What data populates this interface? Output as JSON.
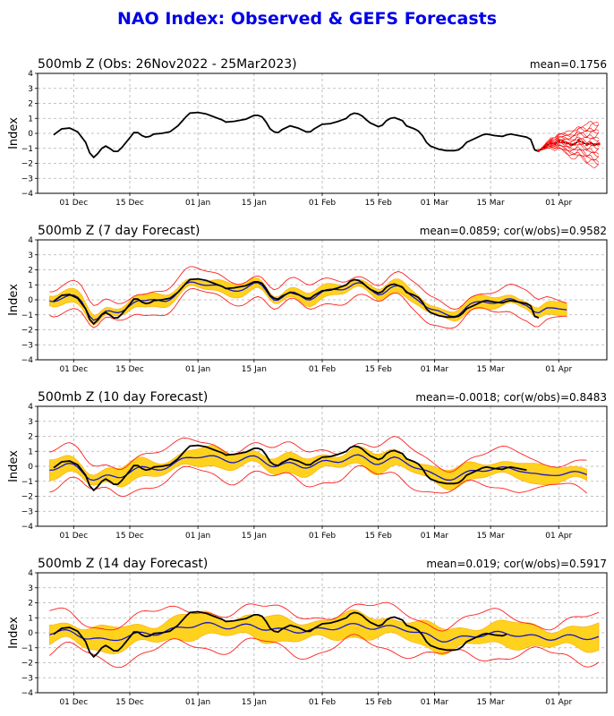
{
  "title": "NAO Index: Observed & GEFS Forecasts",
  "colors": {
    "title": "#0000e6",
    "observed": "#000000",
    "members": "#ff0000",
    "mean": "#1515c8",
    "spread": "#ffd21e",
    "spread_outline": "#ffaa00",
    "envelope": "#ff2020"
  },
  "chart_data": [
    {
      "type": "line",
      "title": "500mb Z (Obs: 26Nov2022 - 25Mar2023)",
      "stat": "mean=0.1756",
      "ylabel": "Index",
      "xlabel": "",
      "ylim": [
        -4,
        4
      ],
      "yticks": [
        "4",
        "3",
        "2",
        "1",
        "0",
        "−1",
        "−2",
        "−3",
        "−4"
      ],
      "xticks": [
        "01 Dec",
        "15 Dec",
        "01 Jan",
        "15 Jan",
        "01 Feb",
        "15 Feb",
        "01 Mar",
        "15 Mar",
        "01 Apr"
      ],
      "grid": true,
      "observed": [
        [
          -5,
          -0.1
        ],
        [
          -3,
          0.3
        ],
        [
          -1,
          0.35
        ],
        [
          1,
          0.1
        ],
        [
          3,
          -0.6
        ],
        [
          4,
          -1.3
        ],
        [
          5,
          -1.6
        ],
        [
          6,
          -1.35
        ],
        [
          7,
          -1.0
        ],
        [
          8,
          -0.85
        ],
        [
          9,
          -1.0
        ],
        [
          10,
          -1.2
        ],
        [
          11,
          -1.2
        ],
        [
          12,
          -0.95
        ],
        [
          14,
          -0.3
        ],
        [
          15,
          0.05
        ],
        [
          16,
          0.05
        ],
        [
          17,
          -0.15
        ],
        [
          18,
          -0.25
        ],
        [
          19,
          -0.2
        ],
        [
          20,
          -0.05
        ],
        [
          22,
          0
        ],
        [
          24,
          0.1
        ],
        [
          26,
          0.5
        ],
        [
          28,
          1.1
        ],
        [
          29,
          1.35
        ],
        [
          31,
          1.4
        ],
        [
          33,
          1.3
        ],
        [
          35,
          1.1
        ],
        [
          37,
          0.9
        ],
        [
          38,
          0.75
        ],
        [
          40,
          0.8
        ],
        [
          43,
          0.95
        ],
        [
          45,
          1.2
        ],
        [
          46,
          1.2
        ],
        [
          47,
          1.1
        ],
        [
          48,
          0.75
        ],
        [
          49,
          0.3
        ],
        [
          50,
          0.1
        ],
        [
          51,
          0.05
        ],
        [
          52,
          0.25
        ],
        [
          54,
          0.5
        ],
        [
          56,
          0.35
        ],
        [
          58,
          0.1
        ],
        [
          59,
          0.1
        ],
        [
          60,
          0.3
        ],
        [
          62,
          0.6
        ],
        [
          64,
          0.65
        ],
        [
          66,
          0.8
        ],
        [
          68,
          1.0
        ],
        [
          69,
          1.25
        ],
        [
          70,
          1.35
        ],
        [
          71,
          1.3
        ],
        [
          72,
          1.15
        ],
        [
          73,
          0.9
        ],
        [
          74,
          0.7
        ],
        [
          76,
          0.45
        ],
        [
          77,
          0.55
        ],
        [
          78,
          0.85
        ],
        [
          79,
          1.0
        ],
        [
          80,
          1.05
        ],
        [
          82,
          0.85
        ],
        [
          83,
          0.5
        ],
        [
          85,
          0.3
        ],
        [
          86,
          0.15
        ],
        [
          87,
          -0.15
        ],
        [
          88,
          -0.6
        ],
        [
          89,
          -0.85
        ],
        [
          91,
          -1.05
        ],
        [
          93,
          -1.15
        ],
        [
          95,
          -1.15
        ],
        [
          96,
          -1.1
        ],
        [
          97,
          -0.9
        ],
        [
          98,
          -0.6
        ],
        [
          100,
          -0.35
        ],
        [
          102,
          -0.1
        ],
        [
          103,
          -0.05
        ],
        [
          105,
          -0.15
        ],
        [
          107,
          -0.2
        ],
        [
          108,
          -0.1
        ],
        [
          109,
          -0.05
        ],
        [
          111,
          -0.15
        ],
        [
          113,
          -0.25
        ],
        [
          114,
          -0.4
        ],
        [
          115,
          -1.1
        ],
        [
          116,
          -1.2
        ]
      ],
      "mean": [
        [
          116,
          -1.15
        ],
        [
          117,
          -1.0
        ],
        [
          118,
          -0.8
        ],
        [
          119,
          -0.65
        ],
        [
          120,
          -0.7
        ],
        [
          121,
          -0.5
        ],
        [
          122,
          -0.55
        ],
        [
          123,
          -0.65
        ],
        [
          124,
          -0.75
        ],
        [
          125,
          -0.7
        ],
        [
          126,
          -0.5
        ],
        [
          127,
          -0.6
        ],
        [
          128,
          -0.75
        ],
        [
          129,
          -0.65
        ],
        [
          130,
          -0.75
        ],
        [
          131,
          -0.7
        ]
      ],
      "members_range": [
        [
          116,
          -1.3,
          -1.0
        ],
        [
          118,
          -1.4,
          -0.5
        ],
        [
          120,
          -1.6,
          -0.2
        ],
        [
          122,
          -1.9,
          0.1
        ],
        [
          124,
          -2.0,
          0.3
        ],
        [
          126,
          -2.1,
          0.5
        ],
        [
          128,
          -2.3,
          0.6
        ],
        [
          131,
          -2.6,
          0.8
        ]
      ]
    },
    {
      "type": "line",
      "title": "500mb Z (7 day Forecast)",
      "stat": "mean=0.0859; cor(w/obs)=0.9582",
      "ylabel": "Index",
      "xlabel": "",
      "ylim": [
        -4,
        4
      ],
      "yticks": [
        "4",
        "3",
        "2",
        "1",
        "0",
        "−1",
        "−2",
        "−3",
        "−4"
      ],
      "xticks": [
        "01 Dec",
        "15 Dec",
        "01 Jan",
        "15 Jan",
        "01 Feb",
        "15 Feb",
        "01 Mar",
        "15 Mar",
        "01 Apr"
      ],
      "grid": true,
      "mean_offset": 0.0,
      "mean_smooth": 1,
      "mean_scale": 0.85,
      "spread": 0.4,
      "env_up": 0.9,
      "env_dn": 0.9,
      "obs_start": -5,
      "obs_end": 116,
      "fc_start": -6,
      "fc_end": 123
    },
    {
      "type": "line",
      "title": "500mb Z (10 day Forecast)",
      "stat": "mean=-0.0018; cor(w/obs)=0.8483",
      "ylabel": "Index",
      "xlabel": "",
      "ylim": [
        -4,
        4
      ],
      "yticks": [
        "4",
        "3",
        "2",
        "1",
        "0",
        "−1",
        "−2",
        "−3",
        "−4"
      ],
      "xticks": [
        "01 Dec",
        "15 Dec",
        "01 Jan",
        "15 Jan",
        "01 Feb",
        "15 Feb",
        "01 Mar",
        "15 Mar",
        "01 Apr"
      ],
      "grid": true,
      "mean_offset": -0.1,
      "mean_smooth": 2,
      "mean_scale": 0.6,
      "spread": 0.6,
      "env_up": 1.2,
      "env_dn": 1.3,
      "obs_start": -5,
      "obs_end": 113,
      "fc_start": -6,
      "fc_end": 128
    },
    {
      "type": "line",
      "title": "500mb Z (14 day Forecast)",
      "stat": "mean=0.019; cor(w/obs)=0.5917",
      "ylabel": "Index",
      "xlabel": "",
      "ylim": [
        -4,
        4
      ],
      "yticks": [
        "4",
        "3",
        "2",
        "1",
        "0",
        "−1",
        "−2",
        "−3",
        "−4"
      ],
      "xticks": [
        "01 Dec",
        "15 Dec",
        "01 Jan",
        "15 Jan",
        "01 Feb",
        "15 Feb",
        "01 Mar",
        "15 Mar",
        "01 Apr"
      ],
      "grid": true,
      "mean_offset": 0.0,
      "mean_smooth": 4,
      "mean_scale": 0.45,
      "spread": 0.8,
      "env_up": 1.4,
      "env_dn": 1.6,
      "obs_start": -5,
      "obs_end": 108,
      "fc_start": -6,
      "fc_end": 131
    }
  ]
}
